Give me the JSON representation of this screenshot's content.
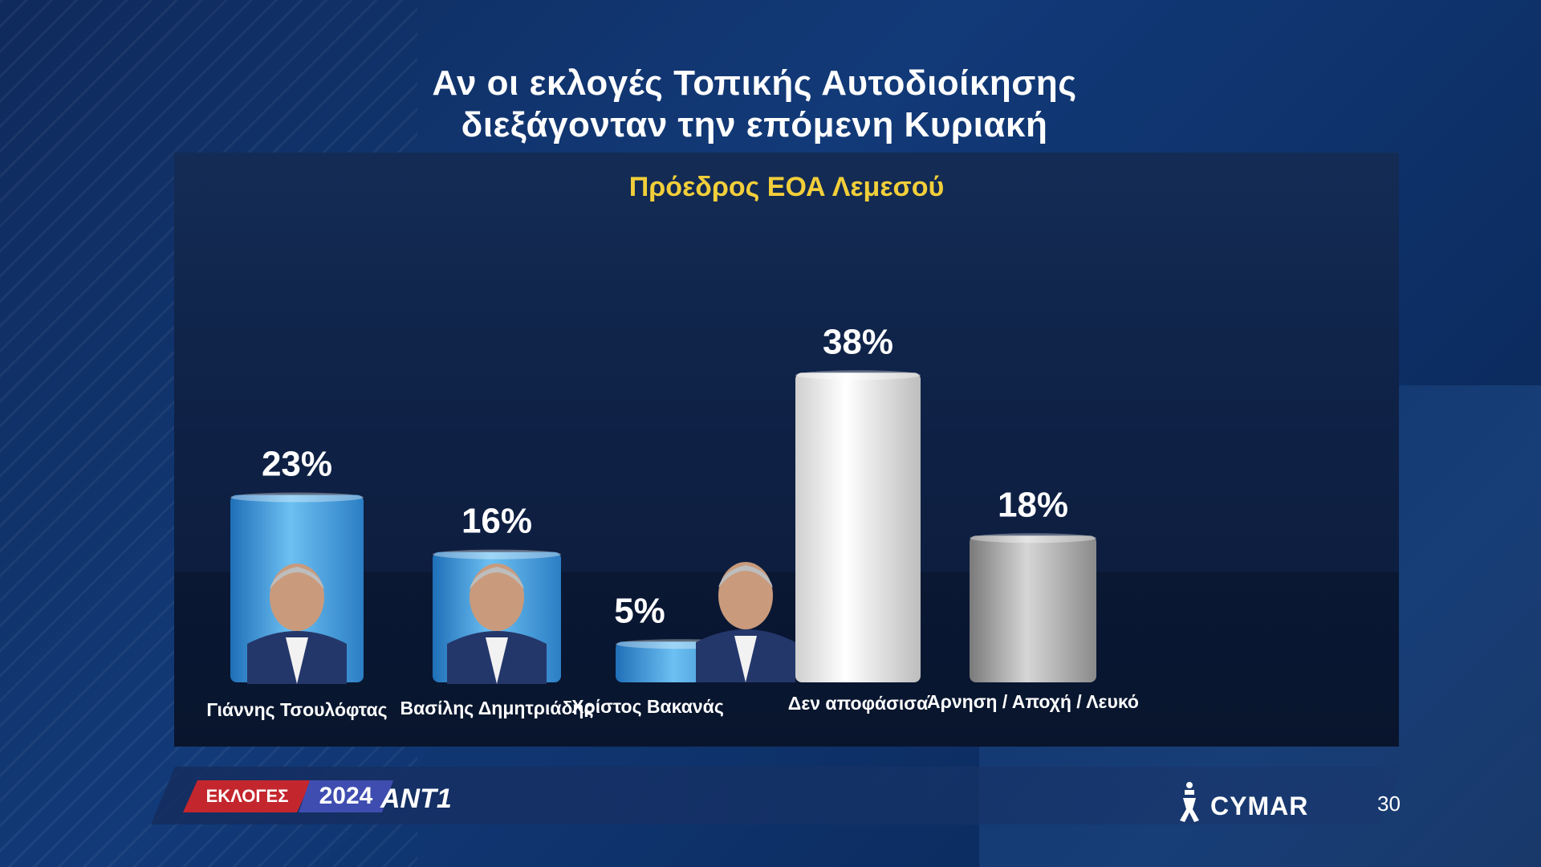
{
  "title_line1": "Αν οι εκλογές Τοπικής Αυτοδιοίκησης",
  "title_line2": "διεξάγονταν την επόμενη Κυριακή",
  "footer": {
    "badge_label": "ΕΚΛΟΓΕΣ",
    "badge_year": "2024",
    "channel_logo": "ANT1",
    "brand": "CYMAR",
    "page_number": "30"
  },
  "chart_data": {
    "type": "bar",
    "title": "Πρόεδρος ΕΟΑ Λεμεσού",
    "categories": [
      "Γιάννης Τσουλόφτας",
      "Βασίλης Δημητριάδης",
      "Χρίστος Βακανάς",
      "Δεν αποφάσισα",
      "Άρνηση / Αποχή / Λευκό"
    ],
    "values": [
      23,
      16,
      5,
      38,
      18
    ],
    "value_labels": [
      "23%",
      "16%",
      "5%",
      "38%",
      "18%"
    ],
    "unit": "%",
    "ylim": [
      0,
      40
    ],
    "grid": false,
    "legend": "none",
    "bar_colors": [
      "#4aa7e6",
      "#4aa7e6",
      "#4aa7e6",
      "#ffffff",
      "#b9b9b9"
    ],
    "candidate_photos": [
      "photo-icon",
      "photo-icon",
      "photo-icon",
      "",
      ""
    ]
  }
}
